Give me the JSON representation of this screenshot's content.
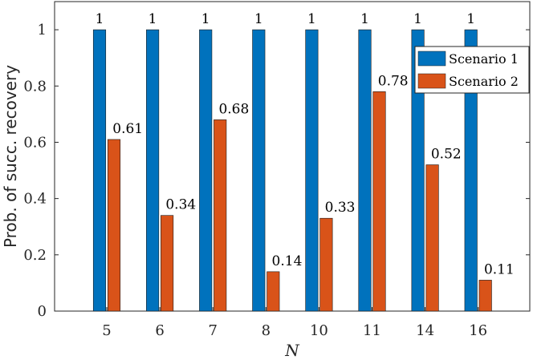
{
  "chart_data": {
    "type": "bar",
    "title": "",
    "xlabel": "N",
    "ylabel": "Prob. of succ. recovery",
    "categories": [
      "5",
      "6",
      "7",
      "8",
      "10",
      "11",
      "14",
      "16"
    ],
    "ylim": [
      0,
      1.1
    ],
    "yticks": [
      0,
      0.2,
      0.4,
      0.6,
      0.8,
      1
    ],
    "ytick_labels": [
      "0",
      "0.2",
      "0.4",
      "0.6",
      "0.8",
      "1"
    ],
    "series": [
      {
        "name": "Scenario 1",
        "color": "#0072BD",
        "values": [
          1,
          1,
          1,
          1,
          1,
          1,
          1,
          1
        ],
        "labels": [
          "1",
          "1",
          "1",
          "1",
          "1",
          "1",
          "1",
          "1"
        ]
      },
      {
        "name": "Scenario 2",
        "color": "#D95319",
        "values": [
          0.61,
          0.34,
          0.68,
          0.14,
          0.33,
          0.78,
          0.52,
          0.11
        ],
        "labels": [
          "0.61",
          "0.34",
          "0.68",
          "0.14",
          "0.33",
          "0.78",
          "0.52",
          "0.11"
        ]
      }
    ],
    "grid": false,
    "legend_position": "top-right"
  }
}
